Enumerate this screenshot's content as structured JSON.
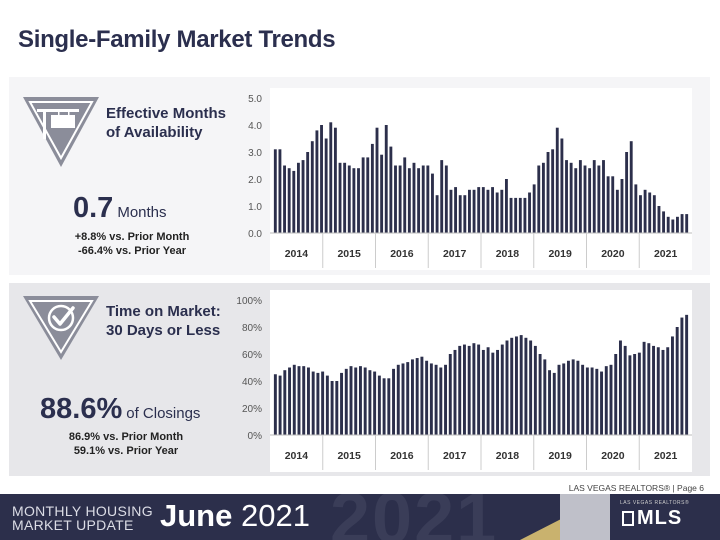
{
  "page_title": "Single-Family Market Trends",
  "metric1": {
    "title_line1": "Effective Months",
    "title_line2": "of Availability",
    "value": "0.7",
    "unit": "Months",
    "line1": "+8.8% vs. Prior Month",
    "line2": "-66.4% vs. Prior Year"
  },
  "metric2": {
    "title_line1": "Time on Market:",
    "title_line2": "30 Days or Less",
    "value": "88.6%",
    "unit": "of Closings",
    "line1": "86.9% vs. Prior Month",
    "line2": "59.1% vs. Prior Year"
  },
  "credit": "LAS VEGAS REALTORS® | Page 6",
  "footer": {
    "line1": "MONTHLY HOUSING",
    "line2": "MARKET UPDATE",
    "month": "June",
    "year": "2021",
    "ghost_year": "2021",
    "logo_small": "LAS VEGAS REALTORS®",
    "logo_main": "MLS"
  },
  "colors": {
    "bar": "#2c2f4b",
    "panel1": "#f5f5f7",
    "panel2": "#e7e7ea",
    "accent_gold": "#c9b26e"
  },
  "icons": {
    "metric1": "for-sale-sign-icon",
    "metric2": "checkmark-badge-icon"
  },
  "chart_data": [
    {
      "type": "bar",
      "title": "",
      "xlabel": "",
      "ylabel": "",
      "ylim": [
        0,
        5
      ],
      "yticks": [
        "0.0",
        "1.0",
        "2.0",
        "3.0",
        "4.0",
        "5.0"
      ],
      "year_labels": [
        "2014",
        "2015",
        "2016",
        "2017",
        "2018",
        "2019",
        "2020",
        "2021"
      ],
      "grid": false,
      "values": [
        3.1,
        3.1,
        2.5,
        2.4,
        2.3,
        2.6,
        2.7,
        3.0,
        3.4,
        3.8,
        4.0,
        3.5,
        4.1,
        3.9,
        2.6,
        2.6,
        2.5,
        2.4,
        2.4,
        2.8,
        2.8,
        3.3,
        3.9,
        2.9,
        4.0,
        3.2,
        2.5,
        2.5,
        2.8,
        2.4,
        2.6,
        2.4,
        2.5,
        2.5,
        2.2,
        1.4,
        2.7,
        2.5,
        1.6,
        1.7,
        1.4,
        1.4,
        1.6,
        1.6,
        1.7,
        1.7,
        1.6,
        1.7,
        1.5,
        1.6,
        2.0,
        1.3,
        1.3,
        1.3,
        1.3,
        1.5,
        1.8,
        2.5,
        2.6,
        3.0,
        3.1,
        3.9,
        3.5,
        2.7,
        2.6,
        2.4,
        2.7,
        2.5,
        2.4,
        2.7,
        2.5,
        2.7,
        2.1,
        2.1,
        1.6,
        2.0,
        3.0,
        3.4,
        1.8,
        1.4,
        1.6,
        1.5,
        1.4,
        1.0,
        0.8,
        0.6,
        0.5,
        0.6,
        0.7,
        0.7
      ]
    },
    {
      "type": "bar",
      "title": "",
      "xlabel": "",
      "ylabel": "",
      "ylim": [
        0,
        100
      ],
      "yticks": [
        "0%",
        "20%",
        "40%",
        "60%",
        "80%",
        "100%"
      ],
      "year_labels": [
        "2014",
        "2015",
        "2016",
        "2017",
        "2018",
        "2019",
        "2020",
        "2021"
      ],
      "grid": false,
      "values": [
        45,
        44,
        48,
        50,
        52,
        51,
        51,
        50,
        47,
        46,
        47,
        44,
        40,
        40,
        46,
        49,
        51,
        50,
        51,
        50,
        48,
        47,
        44,
        42,
        42,
        49,
        52,
        53,
        54,
        56,
        57,
        58,
        55,
        53,
        52,
        50,
        52,
        60,
        63,
        66,
        67,
        66,
        68,
        67,
        63,
        65,
        61,
        63,
        67,
        70,
        72,
        73,
        74,
        72,
        70,
        66,
        60,
        56,
        48,
        46,
        52,
        53,
        55,
        56,
        55,
        52,
        50,
        50,
        49,
        47,
        51,
        52,
        60,
        70,
        66,
        59,
        60,
        61,
        69,
        68,
        66,
        65,
        63,
        65,
        73,
        80,
        87,
        89
      ]
    }
  ]
}
